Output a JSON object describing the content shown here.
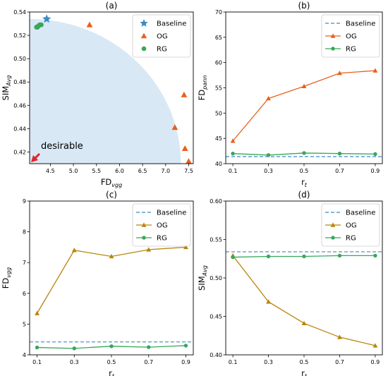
{
  "chart_data": [
    {
      "panel": "a",
      "type": "scatter",
      "title": "(a)",
      "xlabel": "FD",
      "xlabel_sub": "vgg",
      "ylabel": "SIM",
      "ylabel_sub": "Avg",
      "xlim": [
        4.05,
        7.6
      ],
      "ylim": [
        0.41,
        0.54
      ],
      "xticks": [
        "4.5",
        "5.0",
        "5.5",
        "6.0",
        "6.5",
        "7.0",
        "7.5"
      ],
      "yticks": [
        "0.42",
        "0.44",
        "0.46",
        "0.48",
        "0.50",
        "0.52",
        "0.54"
      ],
      "legend": "top-right",
      "annotation": "desirable",
      "region": {
        "center": [
          4.05,
          0.41
        ],
        "x_radius": 3.28,
        "y_radius": 0.124,
        "color": "#d9e8f5"
      },
      "series": [
        {
          "name": "Baseline",
          "marker": "star",
          "color": "#3b8bc2",
          "points": [
            [
              4.42,
              0.534
            ]
          ]
        },
        {
          "name": "OG",
          "marker": "triangle",
          "color": "#e8601c",
          "points": [
            [
              5.35,
              0.529
            ],
            [
              7.2,
              0.441
            ],
            [
              7.4,
              0.469
            ],
            [
              7.42,
              0.423
            ],
            [
              7.5,
              0.412
            ]
          ]
        },
        {
          "name": "RG",
          "marker": "circle",
          "color": "#3aa65a",
          "points": [
            [
              4.2,
              0.527
            ],
            [
              4.24,
              0.528
            ],
            [
              4.27,
              0.529
            ],
            [
              4.3,
              0.529
            ],
            [
              4.22,
              0.527
            ]
          ]
        }
      ]
    },
    {
      "panel": "b",
      "type": "line",
      "title": "(b)",
      "xlabel": "r",
      "xlabel_sub": "t",
      "ylabel": "FD",
      "ylabel_sub": "pann",
      "xlim": [
        0.06,
        0.94
      ],
      "ylim": [
        40,
        70
      ],
      "xticks": [
        "0.1",
        "0.3",
        "0.5",
        "0.7",
        "0.9"
      ],
      "yticks": [
        "40",
        "45",
        "50",
        "55",
        "60",
        "65",
        "70"
      ],
      "legend": "top-right",
      "x": [
        0.1,
        0.3,
        0.5,
        0.7,
        0.9
      ],
      "baseline": {
        "name": "Baseline",
        "value": 41.4,
        "color": "#3b8bc2"
      },
      "series": [
        {
          "name": "OG",
          "marker": "triangle",
          "color": "#e8601c",
          "values": [
            44.5,
            52.9,
            55.3,
            57.9,
            58.4
          ]
        },
        {
          "name": "RG",
          "marker": "circle",
          "color": "#3aa65a",
          "values": [
            42.0,
            41.7,
            42.1,
            42.0,
            41.9
          ]
        }
      ]
    },
    {
      "panel": "c",
      "type": "line",
      "title": "(c)",
      "xlabel": "r",
      "xlabel_sub": "t",
      "ylabel": "FD",
      "ylabel_sub": "vgg",
      "xlim": [
        0.06,
        0.94
      ],
      "ylim": [
        4,
        9
      ],
      "xticks": [
        "0.1",
        "0.3",
        "0.5",
        "0.7",
        "0.9"
      ],
      "yticks": [
        "4",
        "5",
        "6",
        "7",
        "8",
        "9"
      ],
      "legend": "top-right",
      "x": [
        0.1,
        0.3,
        0.5,
        0.7,
        0.9
      ],
      "baseline": {
        "name": "Baseline",
        "value": 4.42,
        "color": "#3b8bc2"
      },
      "series": [
        {
          "name": "OG",
          "marker": "triangle",
          "color": "#b8860b",
          "values": [
            5.35,
            7.4,
            7.2,
            7.42,
            7.5
          ]
        },
        {
          "name": "RG",
          "marker": "circle",
          "color": "#3aa65a",
          "values": [
            4.24,
            4.21,
            4.28,
            4.25,
            4.3
          ]
        }
      ]
    },
    {
      "panel": "d",
      "type": "line",
      "title": "(d)",
      "xlabel": "r",
      "xlabel_sub": "t",
      "ylabel": "SIM",
      "ylabel_sub": "Avg",
      "xlim": [
        0.06,
        0.94
      ],
      "ylim": [
        0.4,
        0.6
      ],
      "xticks": [
        "0.1",
        "0.3",
        "0.5",
        "0.7",
        "0.9"
      ],
      "yticks": [
        "0.40",
        "0.45",
        "0.50",
        "0.55",
        "0.60"
      ],
      "legend": "top-right",
      "x": [
        0.1,
        0.3,
        0.5,
        0.7,
        0.9
      ],
      "baseline": {
        "name": "Baseline",
        "value": 0.534,
        "color": "#3b8bc2"
      },
      "series": [
        {
          "name": "OG",
          "marker": "triangle",
          "color": "#b8860b",
          "values": [
            0.529,
            0.469,
            0.441,
            0.423,
            0.412
          ]
        },
        {
          "name": "RG",
          "marker": "circle",
          "color": "#3aa65a",
          "values": [
            0.527,
            0.528,
            0.528,
            0.529,
            0.529
          ]
        }
      ]
    }
  ]
}
